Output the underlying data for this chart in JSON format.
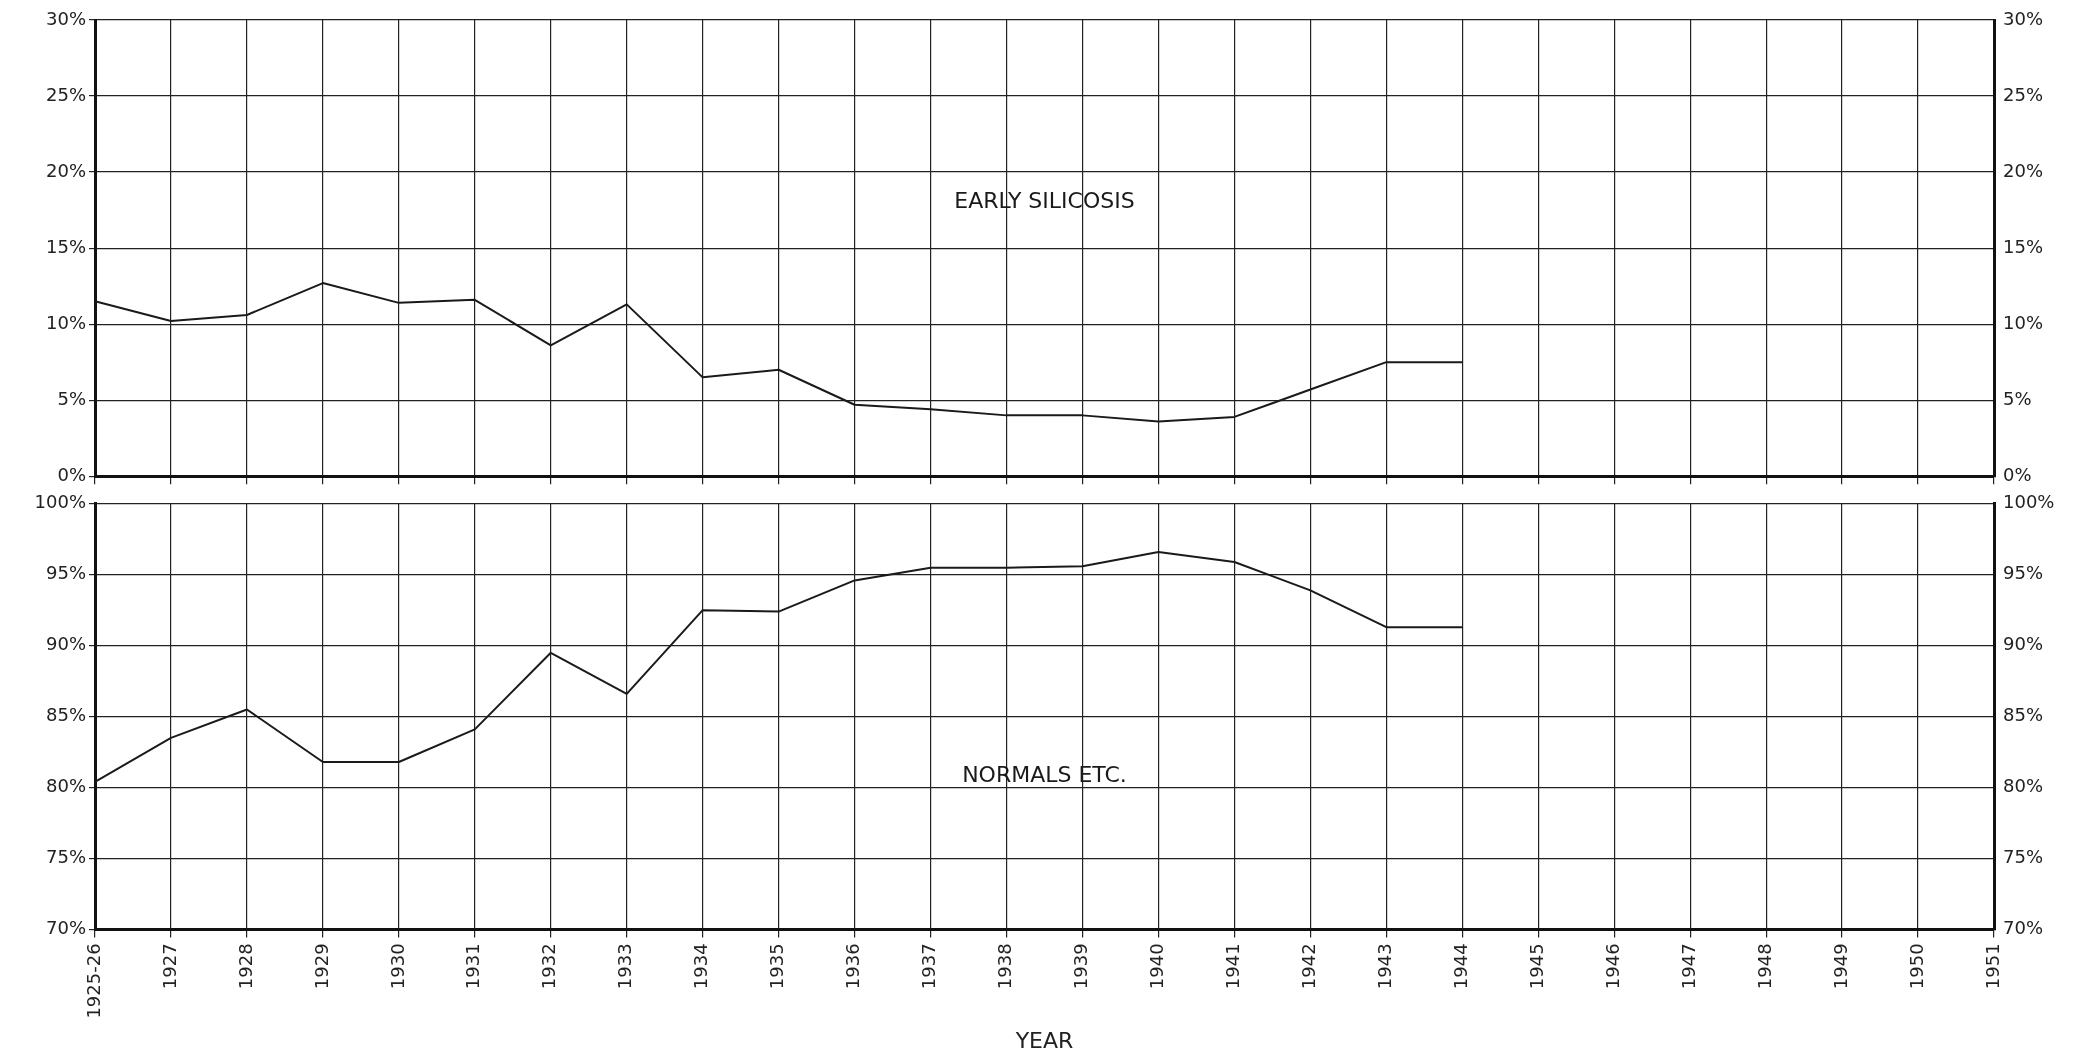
{
  "chart_data": [
    {
      "type": "line",
      "categories": [
        "1925-26",
        "1927",
        "1928",
        "1929",
        "1930",
        "1931",
        "1932",
        "1933",
        "1934",
        "1935",
        "1936",
        "1937",
        "1938",
        "1939",
        "1940",
        "1941",
        "1942",
        "1943",
        "1944",
        "1945",
        "1946",
        "1947",
        "1948",
        "1949",
        "1950",
        "1951"
      ],
      "series": [
        {
          "name": "EARLY SILICOSIS",
          "color": "#1a1a1a",
          "values": [
            11.5,
            10.2,
            10.6,
            12.7,
            11.4,
            11.6,
            8.6,
            11.3,
            6.5,
            7.0,
            4.7,
            4.4,
            4.0,
            4.0,
            3.6,
            3.9,
            5.7,
            7.5,
            7.5,
            null,
            null,
            null,
            null,
            null,
            null,
            null
          ]
        }
      ],
      "ylim": [
        0,
        30
      ],
      "yticks": [
        {
          "value": 0,
          "label": "0%"
        },
        {
          "value": 5,
          "label": "5%"
        },
        {
          "value": 10,
          "label": "10%"
        },
        {
          "value": 15,
          "label": "15%"
        },
        {
          "value": 20,
          "label": "20%"
        },
        {
          "value": 25,
          "label": "25%"
        },
        {
          "value": 30,
          "label": "30%"
        }
      ],
      "y2lim": [
        0,
        30
      ],
      "y2ticks": [
        {
          "value": 0,
          "label": "0%"
        },
        {
          "value": 5,
          "label": "5%"
        },
        {
          "value": 10,
          "label": "10%"
        },
        {
          "value": 15,
          "label": "15%"
        },
        {
          "value": 20,
          "label": "20%"
        },
        {
          "value": 25,
          "label": "25%"
        },
        {
          "value": 30,
          "label": "30%"
        }
      ],
      "grid": true,
      "legend": false,
      "marker": "none",
      "line_style": "solid",
      "tick_labels": "y"
    },
    {
      "type": "line",
      "xlabel": "YEAR",
      "categories": [
        "1925-26",
        "1927",
        "1928",
        "1929",
        "1930",
        "1931",
        "1932",
        "1933",
        "1934",
        "1935",
        "1936",
        "1937",
        "1938",
        "1939",
        "1940",
        "1941",
        "1942",
        "1943",
        "1944",
        "1945",
        "1946",
        "1947",
        "1948",
        "1949",
        "1950",
        "1951"
      ],
      "series": [
        {
          "name": "NORMALS ETC.",
          "color": "#1a1a1a",
          "values": [
            80.4,
            83.5,
            85.5,
            81.8,
            81.8,
            84.1,
            89.5,
            86.6,
            92.5,
            92.4,
            94.6,
            95.5,
            95.5,
            95.6,
            96.6,
            95.9,
            93.9,
            91.3,
            91.3,
            null,
            null,
            null,
            null,
            null,
            null,
            null
          ]
        }
      ],
      "ylim": [
        70,
        100
      ],
      "yticks": [
        {
          "value": 70,
          "label": "70%"
        },
        {
          "value": 75,
          "label": "75%"
        },
        {
          "value": 80,
          "label": "80%"
        },
        {
          "value": 85,
          "label": "85%"
        },
        {
          "value": 90,
          "label": "90%"
        },
        {
          "value": 95,
          "label": "95%"
        },
        {
          "value": 100,
          "label": "100%"
        }
      ],
      "y2lim": [
        70,
        100
      ],
      "y2ticks": [
        {
          "value": 70,
          "label": "70%"
        },
        {
          "value": 75,
          "label": "75%"
        },
        {
          "value": 80,
          "label": "80%"
        },
        {
          "value": 85,
          "label": "85%"
        },
        {
          "value": 90,
          "label": "90%"
        },
        {
          "value": 95,
          "label": "95%"
        },
        {
          "value": 100,
          "label": "100%"
        }
      ],
      "grid": true,
      "legend": false,
      "marker": "none",
      "line_style": "solid"
    }
  ]
}
